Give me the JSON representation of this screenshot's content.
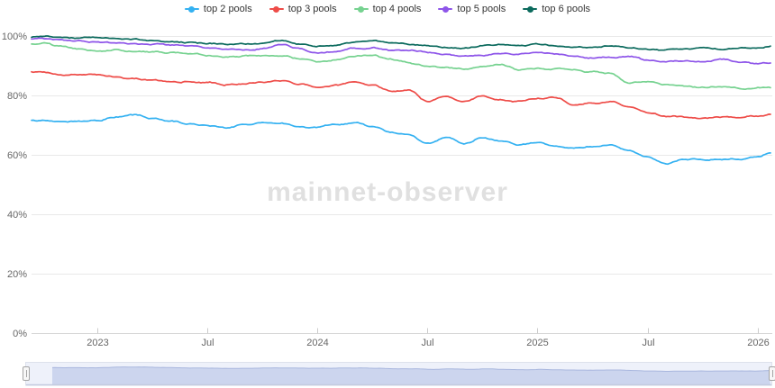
{
  "watermark": "mainnet-observer",
  "colors": {
    "grid": "#e9e9e9",
    "axis_line": "#d6d6d6",
    "tick": "#cccccc",
    "axis_label": "#666666",
    "legend_text": "#333333",
    "watermark_text": "#e0e0e0",
    "navigator_track": "#eef1fa",
    "navigator_border": "#dde1ec",
    "navigator_area": "#ccd5ee",
    "navigator_line": "#a9b7de",
    "navigator_bottom_axis": "#c3cbdf",
    "navigator_handle_fill": "#f7f7f7",
    "navigator_handle_border": "#a5a5a5"
  },
  "chart_data": {
    "type": "line",
    "title": "",
    "legend_position": "top",
    "grid": "horizontal-only",
    "y_axis": {
      "unit": "%",
      "min": 0,
      "max": 100,
      "tick_values": [
        0,
        20,
        40,
        60,
        80,
        100
      ],
      "tick_labels": [
        "0%",
        "20%",
        "40%",
        "60%",
        "80%",
        "100%"
      ]
    },
    "x_axis": {
      "tick_labels": [
        "2023",
        "Jul",
        "2024",
        "Jul",
        "2025",
        "Jul",
        "2026"
      ],
      "tick_month_index": [
        3,
        9,
        15,
        21,
        27,
        33,
        39
      ]
    },
    "categories": [
      "2022-10",
      "2022-11",
      "2022-12",
      "2023-01",
      "2023-02",
      "2023-03",
      "2023-04",
      "2023-05",
      "2023-06",
      "2023-07",
      "2023-08",
      "2023-09",
      "2023-10",
      "2023-11",
      "2023-12",
      "2024-01",
      "2024-02",
      "2024-03",
      "2024-04",
      "2024-05",
      "2024-06",
      "2024-07",
      "2024-08",
      "2024-09",
      "2024-10",
      "2024-11",
      "2024-12",
      "2025-01",
      "2025-02",
      "2025-03",
      "2025-04",
      "2025-05",
      "2025-06",
      "2025-07",
      "2025-08",
      "2025-09",
      "2025-10",
      "2025-11",
      "2025-12",
      "2026-01",
      "2026-01-15"
    ],
    "series": [
      {
        "name": "top 2 pools",
        "color": "#34b1f1",
        "values": [
          71.5,
          71.2,
          71.4,
          71.8,
          73.0,
          73.4,
          72.0,
          71.3,
          70.4,
          70.0,
          69.2,
          70.3,
          71.0,
          70.4,
          69.6,
          69.3,
          70.2,
          70.9,
          69.4,
          67.3,
          66.5,
          63.8,
          65.7,
          64.0,
          66.0,
          64.4,
          63.1,
          64.0,
          62.4,
          62.1,
          62.7,
          62.9,
          61.3,
          59.0,
          56.9,
          58.0,
          58.4,
          58.7,
          59.0,
          59.4,
          60.6
        ]
      },
      {
        "name": "top 3 pools",
        "color": "#ee4c48",
        "values": [
          87.8,
          87.1,
          87.4,
          87.3,
          86.8,
          86.0,
          85.2,
          84.6,
          84.9,
          84.4,
          83.7,
          84.1,
          84.6,
          85.3,
          84.0,
          82.8,
          83.4,
          84.6,
          83.0,
          81.3,
          81.9,
          78.2,
          80.2,
          77.9,
          79.6,
          78.6,
          78.3,
          79.3,
          79.7,
          77.2,
          77.9,
          78.2,
          75.9,
          74.3,
          73.3,
          72.9,
          72.7,
          73.0,
          72.8,
          73.2,
          73.9
        ]
      },
      {
        "name": "top 4 pools",
        "color": "#76d290",
        "values": [
          97.3,
          96.2,
          95.3,
          95.0,
          95.3,
          95.1,
          94.7,
          94.3,
          93.8,
          93.4,
          92.9,
          93.1,
          93.3,
          93.7,
          92.5,
          91.6,
          92.3,
          93.4,
          93.8,
          92.0,
          90.8,
          89.9,
          89.4,
          88.9,
          90.2,
          90.7,
          89.0,
          89.4,
          89.0,
          89.1,
          88.3,
          87.9,
          84.2,
          84.8,
          83.5,
          83.0,
          82.7,
          83.2,
          82.4,
          82.4,
          82.7
        ]
      },
      {
        "name": "top 5 pools",
        "color": "#8e55e9",
        "values": [
          99.0,
          98.6,
          98.2,
          98.0,
          97.9,
          97.6,
          97.2,
          96.8,
          96.2,
          95.9,
          95.4,
          95.7,
          96.1,
          97.2,
          96.0,
          94.5,
          95.0,
          95.7,
          95.9,
          95.0,
          94.6,
          94.2,
          93.6,
          92.9,
          93.6,
          94.3,
          94.0,
          94.6,
          93.9,
          93.3,
          92.7,
          93.0,
          93.6,
          92.0,
          91.5,
          91.8,
          91.2,
          92.3,
          91.1,
          90.3,
          90.7
        ]
      },
      {
        "name": "top 6 pools",
        "color": "#0b6a5d",
        "values": [
          99.7,
          99.4,
          99.1,
          99.0,
          98.9,
          98.7,
          98.4,
          98.1,
          97.7,
          97.4,
          97.1,
          97.3,
          97.5,
          98.4,
          97.6,
          96.6,
          97.0,
          97.6,
          97.7,
          97.3,
          97.4,
          97.3,
          96.6,
          96.4,
          96.9,
          97.1,
          96.6,
          96.9,
          96.6,
          96.4,
          96.1,
          96.7,
          95.8,
          95.2,
          94.8,
          95.2,
          95.8,
          95.5,
          96.0,
          95.6,
          96.4
        ]
      }
    ]
  },
  "navigator": {
    "series_shown": "top 2 pools",
    "selected_range": "full"
  }
}
